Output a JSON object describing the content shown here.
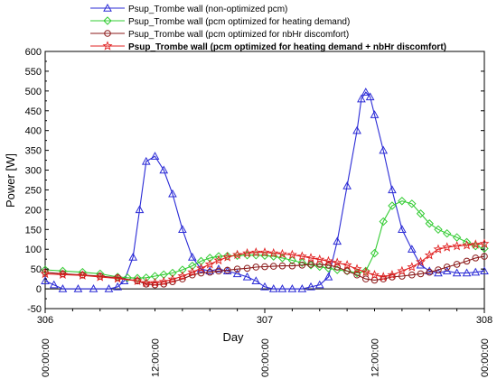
{
  "chart_data": {
    "type": "line",
    "title": "",
    "xlabel": "Day",
    "ylabel": "Power [W]",
    "xlim": [
      306,
      308
    ],
    "ylim": [
      -50,
      600
    ],
    "yticks": [
      -50,
      0,
      50,
      100,
      150,
      200,
      250,
      300,
      350,
      400,
      450,
      500,
      550,
      600
    ],
    "xticks_major": [
      {
        "x": 306,
        "label": "306"
      },
      {
        "x": 307,
        "label": "307"
      },
      {
        "x": 308,
        "label": "308"
      }
    ],
    "xticks_time": [
      {
        "x": 306.0,
        "label": "00:00:00"
      },
      {
        "x": 306.5,
        "label": "12:00:00"
      },
      {
        "x": 307.0,
        "label": "00:00:00"
      },
      {
        "x": 307.5,
        "label": "12:00:00"
      },
      {
        "x": 308.0,
        "label": "00:00:00"
      }
    ],
    "legend_position": "top",
    "grid": false,
    "series": [
      {
        "name": "Psup_Trombe wall (non-optimized pcm)",
        "color": "#2b2bd6",
        "marker": "triangle",
        "bold": false,
        "x": [
          306.0,
          306.04,
          306.08,
          306.15,
          306.22,
          306.29,
          306.33,
          306.36,
          306.4,
          306.43,
          306.46,
          306.5,
          306.54,
          306.58,
          306.625,
          306.67,
          306.71,
          306.75,
          306.79,
          306.83,
          306.875,
          306.92,
          306.96,
          307.0,
          307.04,
          307.08,
          307.125,
          307.17,
          307.21,
          307.25,
          307.29,
          307.33,
          307.375,
          307.42,
          307.44,
          307.46,
          307.48,
          307.5,
          307.54,
          307.58,
          307.625,
          307.67,
          307.71,
          307.75,
          307.79,
          307.83,
          307.875,
          307.92,
          307.96,
          308.0
        ],
        "y": [
          20,
          10,
          0,
          0,
          0,
          0,
          5,
          20,
          80,
          200,
          322,
          335,
          300,
          240,
          150,
          80,
          50,
          45,
          50,
          45,
          38,
          30,
          20,
          5,
          0,
          0,
          0,
          0,
          5,
          10,
          30,
          120,
          260,
          400,
          480,
          497,
          485,
          440,
          350,
          250,
          150,
          100,
          60,
          45,
          40,
          45,
          40,
          40,
          42,
          45
        ]
      },
      {
        "name": "Psup_Trombe wall (pcm optimized for heating demand)",
        "color": "#33cc33",
        "marker": "diamond",
        "bold": false,
        "x": [
          306.0,
          306.08,
          306.17,
          306.25,
          306.33,
          306.375,
          306.42,
          306.46,
          306.5,
          306.54,
          306.58,
          306.625,
          306.67,
          306.71,
          306.75,
          306.79,
          306.83,
          306.875,
          306.92,
          306.96,
          307.0,
          307.04,
          307.08,
          307.125,
          307.17,
          307.21,
          307.25,
          307.29,
          307.33,
          307.375,
          307.42,
          307.46,
          307.5,
          307.54,
          307.58,
          307.625,
          307.67,
          307.71,
          307.75,
          307.79,
          307.83,
          307.875,
          307.92,
          307.96,
          308.0
        ],
        "y": [
          48,
          45,
          42,
          38,
          30,
          28,
          27,
          28,
          32,
          36,
          40,
          48,
          58,
          70,
          78,
          82,
          83,
          84,
          85,
          85,
          84,
          82,
          78,
          72,
          66,
          60,
          56,
          52,
          48,
          45,
          40,
          45,
          90,
          170,
          210,
          222,
          215,
          190,
          165,
          150,
          140,
          130,
          118,
          108,
          102
        ]
      },
      {
        "name": "Psup_Trombe wall (pcm optimized for nbHr discomfort)",
        "color": "#8b1a1a",
        "marker": "circle",
        "bold": false,
        "x": [
          306.0,
          306.08,
          306.17,
          306.25,
          306.33,
          306.42,
          306.46,
          306.5,
          306.54,
          306.58,
          306.625,
          306.67,
          306.71,
          306.75,
          306.79,
          306.83,
          306.875,
          306.92,
          306.96,
          307.0,
          307.04,
          307.08,
          307.125,
          307.17,
          307.21,
          307.25,
          307.29,
          307.33,
          307.375,
          307.42,
          307.46,
          307.5,
          307.54,
          307.58,
          307.625,
          307.67,
          307.71,
          307.75,
          307.79,
          307.83,
          307.875,
          307.92,
          307.96,
          308.0
        ],
        "y": [
          42,
          38,
          35,
          32,
          28,
          20,
          12,
          10,
          12,
          18,
          25,
          35,
          40,
          42,
          45,
          47,
          50,
          52,
          55,
          56,
          57,
          58,
          58,
          60,
          62,
          62,
          60,
          55,
          45,
          35,
          25,
          22,
          25,
          30,
          32,
          35,
          38,
          42,
          48,
          55,
          62,
          70,
          78,
          82
        ]
      },
      {
        "name": "Psup_Trombe wall (pcm optimized for heating demand + nbHr discomfort)",
        "color": "#e02020",
        "marker": "star",
        "bold": true,
        "x": [
          306.0,
          306.08,
          306.17,
          306.25,
          306.33,
          306.42,
          306.46,
          306.5,
          306.54,
          306.58,
          306.625,
          306.67,
          306.71,
          306.75,
          306.79,
          306.83,
          306.875,
          306.92,
          306.96,
          307.0,
          307.04,
          307.08,
          307.125,
          307.17,
          307.21,
          307.25,
          307.29,
          307.33,
          307.375,
          307.42,
          307.46,
          307.5,
          307.54,
          307.58,
          307.625,
          307.67,
          307.71,
          307.75,
          307.79,
          307.83,
          307.875,
          307.92,
          307.96,
          308.0
        ],
        "y": [
          38,
          36,
          34,
          30,
          26,
          20,
          15,
          15,
          18,
          24,
          32,
          42,
          52,
          62,
          72,
          80,
          86,
          90,
          92,
          92,
          90,
          88,
          86,
          82,
          78,
          74,
          70,
          66,
          60,
          50,
          42,
          35,
          30,
          35,
          45,
          55,
          68,
          85,
          100,
          105,
          108,
          110,
          112,
          114
        ]
      }
    ]
  }
}
